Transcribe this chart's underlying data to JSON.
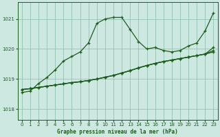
{
  "title": "Graphe pression niveau de la mer (hPa)",
  "bg_color": "#cce8e0",
  "grid_color": "#88bbaa",
  "line_color": "#1a5c1a",
  "xlim": [
    -0.5,
    23.5
  ],
  "ylim": [
    1017.65,
    1021.55
  ],
  "yticks": [
    1018,
    1019,
    1020,
    1021
  ],
  "xticks": [
    0,
    1,
    2,
    3,
    4,
    5,
    6,
    7,
    8,
    9,
    10,
    11,
    12,
    13,
    14,
    15,
    16,
    17,
    18,
    19,
    20,
    21,
    22,
    23
  ],
  "s1": [
    1018.55,
    1018.6,
    1018.85,
    1019.05,
    1019.3,
    1019.6,
    1019.75,
    1019.9,
    1020.2,
    1020.85,
    1021.0,
    1021.05,
    1021.05,
    1020.65,
    1020.25,
    1020.0,
    1020.05,
    1019.95,
    1019.9,
    1019.95,
    1020.1,
    1020.2,
    1020.6,
    1021.2
  ],
  "s2": [
    1018.65,
    1018.68,
    1018.72,
    1018.76,
    1018.8,
    1018.84,
    1018.88,
    1018.91,
    1018.95,
    1019.0,
    1019.06,
    1019.12,
    1019.2,
    1019.28,
    1019.37,
    1019.45,
    1019.52,
    1019.58,
    1019.63,
    1019.68,
    1019.73,
    1019.78,
    1019.83,
    1019.9
  ],
  "s3": [
    1018.65,
    1018.68,
    1018.72,
    1018.76,
    1018.8,
    1018.84,
    1018.88,
    1018.91,
    1018.95,
    1019.0,
    1019.06,
    1019.12,
    1019.2,
    1019.28,
    1019.37,
    1019.45,
    1019.52,
    1019.58,
    1019.63,
    1019.68,
    1019.73,
    1019.78,
    1019.83,
    1019.95
  ],
  "s4": [
    1018.65,
    1018.68,
    1018.72,
    1018.76,
    1018.8,
    1018.84,
    1018.88,
    1018.91,
    1018.95,
    1019.0,
    1019.06,
    1019.12,
    1019.2,
    1019.28,
    1019.37,
    1019.45,
    1019.52,
    1019.58,
    1019.63,
    1019.68,
    1019.73,
    1019.78,
    1019.83,
    1020.05
  ]
}
